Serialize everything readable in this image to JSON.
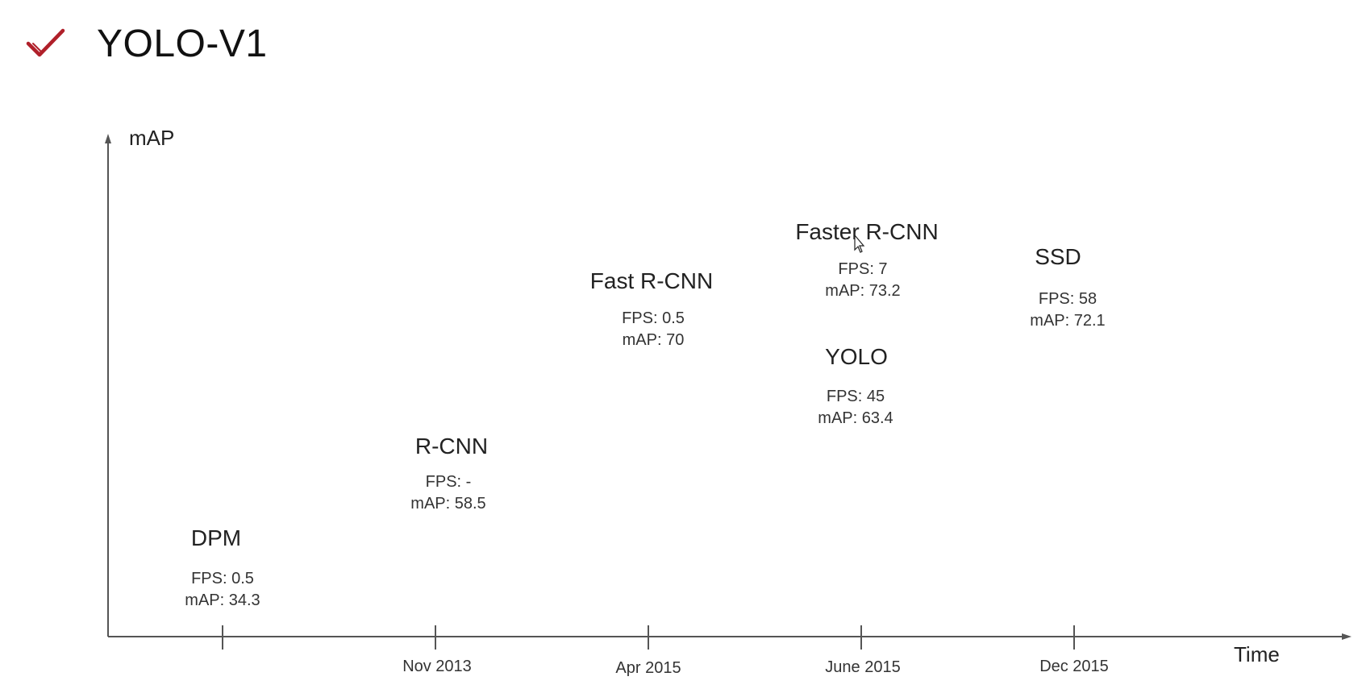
{
  "page": {
    "title": "YOLO-V1",
    "title_icon": "checkmark-icon",
    "accent_color": "#b0202a"
  },
  "diagram": {
    "y_axis_label": "mAP",
    "x_axis_label": "Time",
    "ticks": [
      {
        "label": ""
      },
      {
        "label": "Nov 2013"
      },
      {
        "label": "Apr 2015"
      },
      {
        "label": "June 2015"
      },
      {
        "label": "Dec 2015"
      }
    ],
    "models": [
      {
        "name": "DPM",
        "fps": "FPS: 0.5",
        "map": "mAP: 34.3"
      },
      {
        "name": "R-CNN",
        "fps": "FPS: -",
        "map": "mAP: 58.5"
      },
      {
        "name": "Fast R-CNN",
        "fps": "FPS: 0.5",
        "map": "mAP: 70"
      },
      {
        "name": "Faster R-CNN",
        "fps": "FPS: 7",
        "map": "mAP: 73.2"
      },
      {
        "name": "YOLO",
        "fps": "FPS: 45",
        "map": "mAP: 63.4"
      },
      {
        "name": "SSD",
        "fps": "FPS: 58",
        "map": "mAP: 72.1"
      }
    ]
  }
}
